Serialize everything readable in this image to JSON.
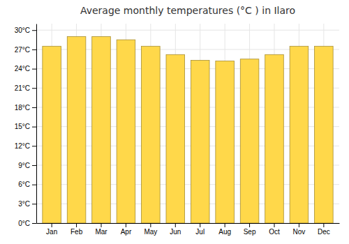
{
  "chart_data": {
    "type": "bar",
    "title": "Average monthly temperatures (°C ) in Ilaro",
    "categories": [
      "Jan",
      "Feb",
      "Mar",
      "Apr",
      "May",
      "Jun",
      "Jul",
      "Aug",
      "Sep",
      "Oct",
      "Nov",
      "Dec"
    ],
    "values": [
      27.5,
      29.0,
      29.0,
      28.5,
      27.5,
      26.2,
      25.3,
      25.2,
      25.5,
      26.2,
      27.5,
      27.5
    ],
    "color": "#FFD84A",
    "ylim": [
      0,
      31
    ],
    "yticks": [
      {
        "value": 0,
        "label": "0°C"
      },
      {
        "value": 3,
        "label": "3°C"
      },
      {
        "value": 6,
        "label": "6°C"
      },
      {
        "value": 9,
        "label": "9°C"
      },
      {
        "value": 12,
        "label": "12°C"
      },
      {
        "value": 15,
        "label": "15°C"
      },
      {
        "value": 18,
        "label": "18°C"
      },
      {
        "value": 21,
        "label": "21°C"
      },
      {
        "value": 24,
        "label": "24°C"
      },
      {
        "value": 27,
        "label": "27°C"
      },
      {
        "value": 30,
        "label": "30°C"
      }
    ],
    "grid": true
  }
}
